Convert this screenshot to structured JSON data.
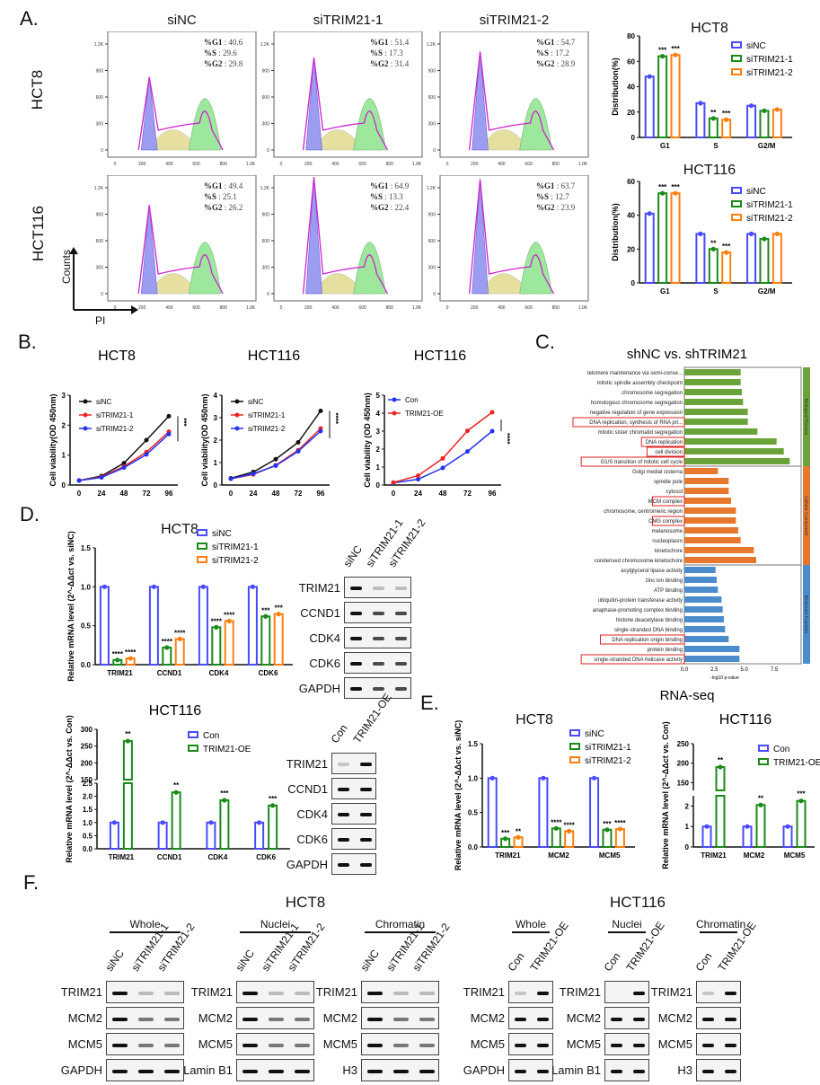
{
  "panel_labels": {
    "A": "A.",
    "B": "B.",
    "C": "C.",
    "D": "D.",
    "E": "E.",
    "F": "F."
  },
  "panelA": {
    "columns": [
      "siNC",
      "siTRIM21-1",
      "siTRIM21-2"
    ],
    "rows": [
      "HCT8",
      "HCT116"
    ],
    "x_ticks": [
      "0",
      "200",
      "400",
      "600",
      "800",
      "1.0K"
    ],
    "y_ticks": [
      "0",
      "300",
      "600",
      "900",
      "1.2K"
    ],
    "axis_y": "Counts",
    "axis_x": "PI",
    "stats": [
      [
        {
          "G1": "40.6",
          "S": "29.6",
          "G2": "29.8"
        },
        {
          "G1": "51.4",
          "S": "17.3",
          "G2": "31.4"
        },
        {
          "G1": "54.7",
          "S": "17.2",
          "G2": "28.9"
        }
      ],
      [
        {
          "G1": "49.4",
          "S": "25.1",
          "G2": "26.2"
        },
        {
          "G1": "64.9",
          "S": "13.3",
          "G2": "22.4"
        },
        {
          "G1": "63.7",
          "S": "12.7",
          "G2": "23.9"
        }
      ]
    ],
    "stat_labels": {
      "G1": "%G1",
      "S": "%S",
      "G2": "%G2"
    }
  },
  "chart_data": [
    {
      "id": "A_HCT8_dist",
      "type": "bar",
      "title": "HCT8",
      "categories": [
        "G1",
        "S",
        "G2/M"
      ],
      "ylabel": "Distribution(%)",
      "ylim": [
        0,
        80
      ],
      "yticks": [
        "0",
        "20",
        "40",
        "60",
        "80"
      ],
      "series": [
        {
          "name": "siNC",
          "color": "#4a4aff",
          "values": [
            48,
            27,
            25
          ]
        },
        {
          "name": "siTRIM21-1",
          "color": "#1a8a1a",
          "values": [
            64,
            15,
            21
          ]
        },
        {
          "name": "siTRIM21-2",
          "color": "#ff7f0e",
          "values": [
            65,
            14,
            22
          ]
        }
      ],
      "significance": [
        [
          "",
          "***",
          "***"
        ],
        [
          "",
          "**",
          "***"
        ],
        [
          "",
          "",
          ""
        ]
      ]
    },
    {
      "id": "A_HCT116_dist",
      "type": "bar",
      "title": "HCT116",
      "categories": [
        "G1",
        "S",
        "G2/M"
      ],
      "ylabel": "Distribution(%)",
      "ylim": [
        0,
        60
      ],
      "yticks": [
        "0",
        "20",
        "40",
        "60"
      ],
      "series": [
        {
          "name": "siNC",
          "color": "#4a4aff",
          "values": [
            41,
            29,
            29
          ]
        },
        {
          "name": "siTRIM21-1",
          "color": "#1a8a1a",
          "values": [
            53,
            20,
            26
          ]
        },
        {
          "name": "siTRIM21-2",
          "color": "#ff7f0e",
          "values": [
            53,
            18,
            29
          ]
        }
      ],
      "significance": [
        [
          "",
          "***",
          "***"
        ],
        [
          "",
          "**",
          "***"
        ],
        [
          "",
          "",
          ""
        ]
      ]
    },
    {
      "id": "B_HCT8",
      "type": "line",
      "title": "HCT8",
      "x": [
        0,
        24,
        48,
        72,
        96
      ],
      "xticks": [
        "0",
        "24",
        "48",
        "72",
        "96"
      ],
      "xlabel": "Time(hours)",
      "ylabel": "Cell viability(OD 450nm)",
      "ylim": [
        0,
        3
      ],
      "yticks": [
        "0",
        "1",
        "2",
        "3"
      ],
      "significance": "***",
      "series": [
        {
          "name": "siNC",
          "color": "#111111",
          "values": [
            0.15,
            0.3,
            0.73,
            1.5,
            2.3
          ]
        },
        {
          "name": "siTRIM21-1",
          "color": "#ee2222",
          "values": [
            0.15,
            0.27,
            0.62,
            1.1,
            1.78
          ]
        },
        {
          "name": "siTRIM21-2",
          "color": "#2233ee",
          "values": [
            0.15,
            0.25,
            0.58,
            1.02,
            1.7
          ]
        }
      ]
    },
    {
      "id": "B_HCT116_si",
      "type": "line",
      "title": "HCT116",
      "x": [
        0,
        24,
        48,
        72,
        96
      ],
      "xticks": [
        "0",
        "24",
        "48",
        "72",
        "96"
      ],
      "xlabel": "Time(hours)",
      "ylabel": "Cell viability(OD 450nm)",
      "ylim": [
        0,
        4
      ],
      "yticks": [
        "0",
        "1",
        "2",
        "3",
        "4"
      ],
      "significance": "****",
      "series": [
        {
          "name": "siNC",
          "color": "#111111",
          "values": [
            0.3,
            0.58,
            1.15,
            1.9,
            3.3
          ]
        },
        {
          "name": "siTRIM21-1",
          "color": "#ee2222",
          "values": [
            0.28,
            0.47,
            0.88,
            1.55,
            2.52
          ]
        },
        {
          "name": "siTRIM21-2",
          "color": "#2233ee",
          "values": [
            0.28,
            0.5,
            0.86,
            1.5,
            2.4
          ]
        }
      ]
    },
    {
      "id": "B_HCT116_OE",
      "type": "line",
      "title": "HCT116",
      "x": [
        0,
        24,
        48,
        72,
        96
      ],
      "xticks": [
        "0",
        "24",
        "48",
        "72",
        "96"
      ],
      "xlabel": "Time(hours)",
      "ylabel": "Cell viability (OD 450nm)",
      "ylim": [
        0,
        5
      ],
      "yticks": [
        "0",
        "1",
        "2",
        "3",
        "4",
        "5"
      ],
      "significance": "****",
      "series": [
        {
          "name": "Con",
          "color": "#2233ee",
          "values": [
            0.12,
            0.32,
            0.95,
            1.87,
            3.0
          ]
        },
        {
          "name": "TRIM21-OE",
          "color": "#ee2222",
          "values": [
            0.14,
            0.52,
            1.48,
            3.02,
            4.05
          ]
        }
      ]
    },
    {
      "id": "C_GO",
      "type": "bar",
      "orientation": "horizontal",
      "title": "shNC vs. shTRIM21",
      "subtitle": "RNA-seq",
      "xlabel": "-log10 p-value",
      "xlim": [
        0,
        9
      ],
      "xticks": [
        "0.0",
        "2.5",
        "5.0",
        "7.5"
      ],
      "groups": [
        {
          "name": "Biological Process",
          "color": "#6aa33a",
          "terms": [
            {
              "label": "telomere maintenance via semi-conse...",
              "value": 4.7,
              "highlight": false
            },
            {
              "label": "mitotic spindle assembly checkpoint",
              "value": 4.7,
              "highlight": false
            },
            {
              "label": "chromosome segregation",
              "value": 4.8,
              "highlight": false
            },
            {
              "label": "homologous chromosome segregation",
              "value": 4.9,
              "highlight": false
            },
            {
              "label": "negative regulation of gene expression",
              "value": 5.3,
              "highlight": false
            },
            {
              "label": "DNA replication, synthesis of RNA pri...",
              "value": 5.3,
              "highlight": true
            },
            {
              "label": "mitotic sister chromatid segregation",
              "value": 6.1,
              "highlight": false
            },
            {
              "label": "DNA replication",
              "value": 7.7,
              "highlight": true
            },
            {
              "label": "cell division",
              "value": 8.3,
              "highlight": true
            },
            {
              "label": "G1/S transition of mitotic cell cycle",
              "value": 8.8,
              "highlight": true
            }
          ]
        },
        {
          "name": "Cellular Component",
          "color": "#e6782e",
          "terms": [
            {
              "label": "Golgi medial cisterna",
              "value": 2.8,
              "highlight": false
            },
            {
              "label": "spindle pole",
              "value": 3.7,
              "highlight": false
            },
            {
              "label": "cytosol",
              "value": 3.7,
              "highlight": false
            },
            {
              "label": "MCM complex",
              "value": 3.9,
              "highlight": true
            },
            {
              "label": "chromosome, centromeric region",
              "value": 4.3,
              "highlight": false
            },
            {
              "label": "CMG complex",
              "value": 4.3,
              "highlight": true
            },
            {
              "label": "melanosome",
              "value": 4.5,
              "highlight": false
            },
            {
              "label": "nucleoplasm",
              "value": 4.7,
              "highlight": false
            },
            {
              "label": "kinetochore",
              "value": 5.8,
              "highlight": false
            },
            {
              "label": "condensed chromosome kinetochore",
              "value": 6.0,
              "highlight": false
            }
          ]
        },
        {
          "name": "Molecular Function",
          "color": "#4a8ccc",
          "terms": [
            {
              "label": "acylglycerol lipase activity",
              "value": 2.6,
              "highlight": false
            },
            {
              "label": "zinc ion binding",
              "value": 2.7,
              "highlight": false
            },
            {
              "label": "ATP binding",
              "value": 2.8,
              "highlight": false
            },
            {
              "label": "ubiquitin-protein transferase activity",
              "value": 3.1,
              "highlight": false
            },
            {
              "label": "anaphase-promoting complex binding",
              "value": 3.2,
              "highlight": false
            },
            {
              "label": "histone deacetylase binding",
              "value": 3.3,
              "highlight": false
            },
            {
              "label": "single-stranded DNA binding",
              "value": 3.4,
              "highlight": false
            },
            {
              "label": "DNA replication origin binding",
              "value": 3.7,
              "highlight": true
            },
            {
              "label": "protein binding",
              "value": 4.6,
              "highlight": false
            },
            {
              "label": "single-stranded DNA helicase activity",
              "value": 4.6,
              "highlight": true
            }
          ]
        }
      ]
    },
    {
      "id": "D_HCT8",
      "type": "bar",
      "title": "HCT8",
      "categories": [
        "TRIM21",
        "CCND1",
        "CDK4",
        "CDK6"
      ],
      "ylabel": "Relative mRNA level (2^-ΔΔct vs. siNC)",
      "ylim": [
        0,
        1.5
      ],
      "yticks": [
        "0.0",
        "0.5",
        "1.0",
        "1.5"
      ],
      "series": [
        {
          "name": "siNC",
          "color": "#4a4aff",
          "values": [
            1.0,
            1.0,
            1.0,
            1.0
          ]
        },
        {
          "name": "siTRIM21-1",
          "color": "#1a8a1a",
          "values": [
            0.06,
            0.22,
            0.48,
            0.62
          ]
        },
        {
          "name": "siTRIM21-2",
          "color": "#ff7f0e",
          "values": [
            0.08,
            0.33,
            0.56,
            0.65
          ]
        }
      ],
      "significance": [
        [
          "",
          "****",
          "****"
        ],
        [
          "",
          "****",
          "****"
        ],
        [
          "",
          "****",
          "****"
        ],
        [
          "",
          "***",
          "***"
        ]
      ]
    },
    {
      "id": "D_HCT116",
      "type": "bar",
      "title": "HCT116",
      "broken_axis": true,
      "categories": [
        "TRIM21",
        "CCND1",
        "CDK4",
        "CDK6"
      ],
      "ylabel": "Relative mRNA level (2^-ΔΔct vs. Con)",
      "yticks_low": [
        "0.0",
        "0.5",
        "1.0",
        "1.5",
        "2.0",
        "2.5"
      ],
      "yticks_high": [
        "150",
        "200",
        "250",
        "300"
      ],
      "series": [
        {
          "name": "Con",
          "color": "#4a4aff",
          "values": [
            1.0,
            1.0,
            1.0,
            1.0
          ]
        },
        {
          "name": "TRIM21-OE",
          "color": "#1a8a1a",
          "values": [
            265,
            2.15,
            1.85,
            1.65
          ]
        }
      ],
      "significance": [
        "**",
        "**",
        "***",
        "***"
      ]
    },
    {
      "id": "E_HCT8",
      "type": "bar",
      "title": "HCT8",
      "categories": [
        "TRIM21",
        "MCM2",
        "MCM5"
      ],
      "ylabel": "Relative mRNA level (2^-ΔΔct vs. siNC)",
      "ylim": [
        0,
        1.5
      ],
      "yticks": [
        "0.0",
        "0.5",
        "1.0",
        "1.5"
      ],
      "series": [
        {
          "name": "siNC",
          "color": "#4a4aff",
          "values": [
            1.0,
            1.0,
            1.0
          ]
        },
        {
          "name": "siTRIM21-1",
          "color": "#1a8a1a",
          "values": [
            0.12,
            0.27,
            0.25
          ]
        },
        {
          "name": "siTRIM21-2",
          "color": "#ff7f0e",
          "values": [
            0.14,
            0.23,
            0.26
          ]
        }
      ],
      "significance": [
        [
          "",
          "***",
          "**"
        ],
        [
          "",
          "****",
          "****"
        ],
        [
          "",
          "***",
          "****"
        ]
      ]
    },
    {
      "id": "E_HCT116",
      "type": "bar",
      "title": "HCT116",
      "broken_axis": true,
      "categories": [
        "TRIM21",
        "MCM2",
        "MCM5"
      ],
      "ylabel": "Relative mRNA level (2^-ΔΔct vs. Con)",
      "yticks_low": [
        "0",
        "1",
        "2"
      ],
      "yticks_high": [
        "150",
        "200",
        "250"
      ],
      "series": [
        {
          "name": "Con",
          "color": "#4a4aff",
          "values": [
            1.0,
            1.0,
            1.0
          ]
        },
        {
          "name": "TRIM21-OE",
          "color": "#1a8a1a",
          "values": [
            190,
            2.05,
            2.25
          ]
        }
      ],
      "significance": [
        "**",
        "**",
        "***"
      ]
    }
  ],
  "blotD": {
    "hct8": {
      "lanes": [
        "siNC",
        "siTRIM21-1",
        "siTRIM21-2"
      ],
      "proteins": [
        "TRIM21",
        "CCND1",
        "CDK4",
        "CDK6",
        "GAPDH"
      ]
    },
    "hct116": {
      "lanes": [
        "Con",
        "TRIM21-OE"
      ],
      "proteins": [
        "TRIM21",
        "CCND1",
        "CDK4",
        "CDK6",
        "GAPDH"
      ]
    }
  },
  "panelF": {
    "hct8_title": "HCT8",
    "hct116_title": "HCT116",
    "blocks": [
      {
        "fraction": "Whole",
        "lanes": [
          "siNC",
          "siTRIM21-1",
          "siTRIM21-2"
        ],
        "proteins": [
          "TRIM21",
          "MCM2",
          "MCM5",
          "GAPDH"
        ]
      },
      {
        "fraction": "Nuclei",
        "lanes": [
          "siNC",
          "siTRIM21-1",
          "siTRIM21-2"
        ],
        "proteins": [
          "TRIM21",
          "MCM2",
          "MCM5",
          "Lamin B1"
        ]
      },
      {
        "fraction": "Chromatin",
        "lanes": [
          "siNC",
          "siTRIM21-1",
          "siTRIM21-2"
        ],
        "proteins": [
          "TRIM21",
          "MCM2",
          "MCM5",
          "H3"
        ]
      },
      {
        "fraction": "Whole",
        "lanes": [
          "Con",
          "TRIM21-OE"
        ],
        "proteins": [
          "TRIM21",
          "MCM2",
          "MCM5",
          "GAPDH"
        ]
      },
      {
        "fraction": "Nuclei",
        "lanes": [
          "Con",
          "TRIM21-OE"
        ],
        "proteins": [
          "TRIM21",
          "MCM2",
          "MCM5",
          "Lamin B1"
        ]
      },
      {
        "fraction": "Chromatin",
        "lanes": [
          "Con",
          "TRIM21-OE"
        ],
        "proteins": [
          "TRIM21",
          "MCM2",
          "MCM5",
          "H3"
        ]
      }
    ]
  }
}
